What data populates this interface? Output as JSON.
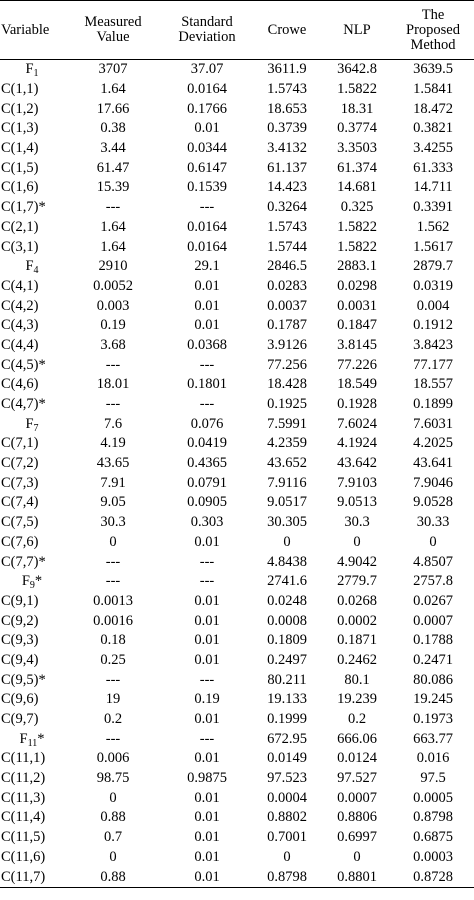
{
  "headers": [
    "Variable",
    "Measured\nValue",
    "Standard\nDeviation",
    "Crowe",
    "NLP",
    "The\nProposed\nMethod"
  ],
  "rows": [
    [
      "F|1",
      "3707",
      "37.07",
      "3611.9",
      "3642.8",
      "3639.5"
    ],
    [
      "C(1,1)",
      "1.64",
      "0.0164",
      "1.5743",
      "1.5822",
      "1.5841"
    ],
    [
      "C(1,2)",
      "17.66",
      "0.1766",
      "18.653",
      "18.31",
      "18.472"
    ],
    [
      "C(1,3)",
      "0.38",
      "0.01",
      "0.3739",
      "0.3774",
      "0.3821"
    ],
    [
      "C(1,4)",
      "3.44",
      "0.0344",
      "3.4132",
      "3.3503",
      "3.4255"
    ],
    [
      "C(1,5)",
      "61.47",
      "0.6147",
      "61.137",
      "61.374",
      "61.333"
    ],
    [
      "C(1,6)",
      "15.39",
      "0.1539",
      "14.423",
      "14.681",
      "14.711"
    ],
    [
      "C(1,7)*",
      "---",
      "---",
      "0.3264",
      "0.325",
      "0.3391"
    ],
    [
      "C(2,1)",
      "1.64",
      "0.0164",
      "1.5743",
      "1.5822",
      "1.562"
    ],
    [
      "C(3,1)",
      "1.64",
      "0.0164",
      "1.5744",
      "1.5822",
      "1.5617"
    ],
    [
      "F|4",
      "2910",
      "29.1",
      "2846.5",
      "2883.1",
      "2879.7"
    ],
    [
      "C(4,1)",
      "0.0052",
      "0.01",
      "0.0283",
      "0.0298",
      "0.0319"
    ],
    [
      "C(4,2)",
      "0.003",
      "0.01",
      "0.0037",
      "0.0031",
      "0.004"
    ],
    [
      "C(4,3)",
      "0.19",
      "0.01",
      "0.1787",
      "0.1847",
      "0.1912"
    ],
    [
      "C(4,4)",
      "3.68",
      "0.0368",
      "3.9126",
      "3.8145",
      "3.8423"
    ],
    [
      "C(4,5)*",
      "---",
      "---",
      "77.256",
      "77.226",
      "77.177"
    ],
    [
      "C(4,6)",
      "18.01",
      "0.1801",
      "18.428",
      "18.549",
      "18.557"
    ],
    [
      "C(4,7)*",
      "---",
      "---",
      "0.1925",
      "0.1928",
      "0.1899"
    ],
    [
      "F|7",
      "7.6",
      "0.076",
      "7.5991",
      "7.6024",
      "7.6031"
    ],
    [
      "C(7,1)",
      "4.19",
      "0.0419",
      "4.2359",
      "4.1924",
      "4.2025"
    ],
    [
      "C(7,2)",
      "43.65",
      "0.4365",
      "43.652",
      "43.642",
      "43.641"
    ],
    [
      "C(7,3)",
      "7.91",
      "0.0791",
      "7.9116",
      "7.9103",
      "7.9046"
    ],
    [
      "C(7,4)",
      "9.05",
      "0.0905",
      "9.0517",
      "9.0513",
      "9.0528"
    ],
    [
      "C(7,5)",
      "30.3",
      "0.303",
      "30.305",
      "30.3",
      "30.33"
    ],
    [
      "C(7,6)",
      "0",
      "0.01",
      "0",
      "0",
      "0"
    ],
    [
      "C(7,7)*",
      "---",
      "---",
      "4.8438",
      "4.9042",
      "4.8507"
    ],
    [
      "F|9|*",
      "---",
      "---",
      "2741.6",
      "2779.7",
      "2757.8"
    ],
    [
      "C(9,1)",
      "0.0013",
      "0.01",
      "0.0248",
      "0.0268",
      "0.0267"
    ],
    [
      "C(9,2)",
      "0.0016",
      "0.01",
      "0.0008",
      "0.0002",
      "0.0007"
    ],
    [
      "C(9,3)",
      "0.18",
      "0.01",
      "0.1809",
      "0.1871",
      "0.1788"
    ],
    [
      "C(9,4)",
      "0.25",
      "0.01",
      "0.2497",
      "0.2462",
      "0.2471"
    ],
    [
      "C(9,5)*",
      "---",
      "---",
      "80.211",
      "80.1",
      "80.086"
    ],
    [
      "C(9,6)",
      "19",
      "0.19",
      "19.133",
      "19.239",
      "19.245"
    ],
    [
      "C(9,7)",
      "0.2",
      "0.01",
      "0.1999",
      "0.2",
      "0.1973"
    ],
    [
      "F|11|*",
      "---",
      "---",
      "672.95",
      "666.06",
      "663.77"
    ],
    [
      "C(11,1)",
      "0.006",
      "0.01",
      "0.0149",
      "0.0124",
      "0.016"
    ],
    [
      "C(11,2)",
      "98.75",
      "0.9875",
      "97.523",
      "97.527",
      "97.5"
    ],
    [
      "C(11,3)",
      "0",
      "0.01",
      "0.0004",
      "0.0007",
      "0.0005"
    ],
    [
      "C(11,4)",
      "0.88",
      "0.01",
      "0.8802",
      "0.8806",
      "0.8798"
    ],
    [
      "C(11,5)",
      "0.7",
      "0.01",
      "0.7001",
      "0.6997",
      "0.6875"
    ],
    [
      "C(11,6)",
      "0",
      "0.01",
      "0",
      "0",
      "0.0003"
    ],
    [
      "C(11,7)",
      "0.88",
      "0.01",
      "0.8798",
      "0.8801",
      "0.8728"
    ]
  ]
}
